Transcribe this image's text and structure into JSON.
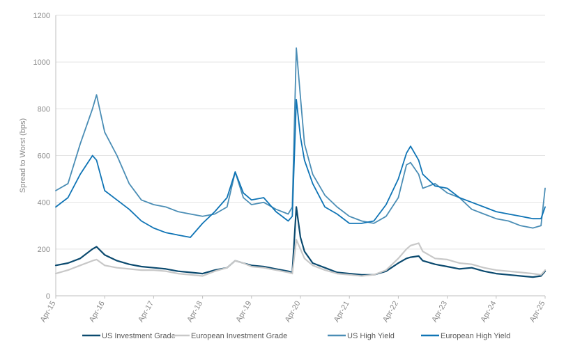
{
  "chart_data": {
    "type": "line",
    "ylabel": "Spread to Worst (bps)",
    "ylim": [
      0,
      1200
    ],
    "yticks": [
      0,
      200,
      400,
      600,
      800,
      1000,
      1200
    ],
    "xticks": [
      "Apr-15",
      "Apr-16",
      "Apr-17",
      "Apr-18",
      "Apr-19",
      "Apr-20",
      "Apr-21",
      "Apr-22",
      "Apr-23",
      "Apr-24",
      "Apr-25"
    ],
    "grid": "horizontal",
    "legend": "bottom",
    "x": [
      "2015-04",
      "2015-07",
      "2015-10",
      "2016-01",
      "2016-02",
      "2016-04",
      "2016-07",
      "2016-10",
      "2017-01",
      "2017-04",
      "2017-07",
      "2017-10",
      "2018-01",
      "2018-04",
      "2018-07",
      "2018-10",
      "2018-12",
      "2019-02",
      "2019-04",
      "2019-07",
      "2019-10",
      "2020-01",
      "2020-02",
      "2020-03",
      "2020-04",
      "2020-05",
      "2020-07",
      "2020-10",
      "2021-01",
      "2021-04",
      "2021-07",
      "2021-10",
      "2022-01",
      "2022-04",
      "2022-06",
      "2022-07",
      "2022-09",
      "2022-10",
      "2023-01",
      "2023-04",
      "2023-07",
      "2023-10",
      "2024-01",
      "2024-04",
      "2024-07",
      "2024-10",
      "2025-01",
      "2025-03",
      "2025-04"
    ],
    "series": [
      {
        "name": "US Investment Grade",
        "color": "#0b4a6f",
        "width": 2.2,
        "values": [
          130,
          140,
          160,
          200,
          210,
          175,
          150,
          135,
          125,
          120,
          115,
          105,
          100,
          95,
          110,
          120,
          150,
          140,
          130,
          125,
          115,
          105,
          100,
          380,
          250,
          190,
          140,
          120,
          100,
          95,
          90,
          90,
          105,
          140,
          160,
          165,
          170,
          150,
          135,
          125,
          115,
          120,
          105,
          95,
          90,
          85,
          80,
          85,
          105
        ]
      },
      {
        "name": "European Investment Grade",
        "color": "#c8c8c8",
        "width": 2.2,
        "values": [
          95,
          110,
          130,
          150,
          155,
          130,
          120,
          115,
          110,
          110,
          105,
          95,
          90,
          85,
          105,
          120,
          150,
          140,
          125,
          120,
          110,
          100,
          95,
          240,
          200,
          160,
          130,
          110,
          95,
          90,
          85,
          90,
          110,
          160,
          200,
          215,
          225,
          190,
          160,
          155,
          140,
          135,
          120,
          110,
          105,
          100,
          95,
          90,
          110
        ]
      },
      {
        "name": "US High Yield",
        "color": "#4a8db5",
        "width": 1.8,
        "values": [
          450,
          480,
          650,
          800,
          860,
          700,
          600,
          480,
          410,
          390,
          380,
          360,
          350,
          340,
          350,
          380,
          530,
          420,
          390,
          400,
          370,
          350,
          380,
          1060,
          850,
          650,
          520,
          430,
          380,
          340,
          320,
          310,
          340,
          420,
          560,
          570,
          520,
          460,
          480,
          440,
          420,
          370,
          350,
          330,
          320,
          300,
          290,
          300,
          460
        ]
      },
      {
        "name": "European High Yield",
        "color": "#0f74b5",
        "width": 1.8,
        "values": [
          380,
          420,
          520,
          600,
          580,
          450,
          410,
          370,
          320,
          290,
          270,
          260,
          250,
          310,
          360,
          420,
          530,
          440,
          410,
          420,
          360,
          320,
          340,
          840,
          680,
          580,
          480,
          380,
          350,
          310,
          310,
          320,
          390,
          500,
          610,
          640,
          580,
          520,
          470,
          460,
          420,
          400,
          380,
          360,
          350,
          340,
          330,
          330,
          380
        ]
      }
    ]
  }
}
